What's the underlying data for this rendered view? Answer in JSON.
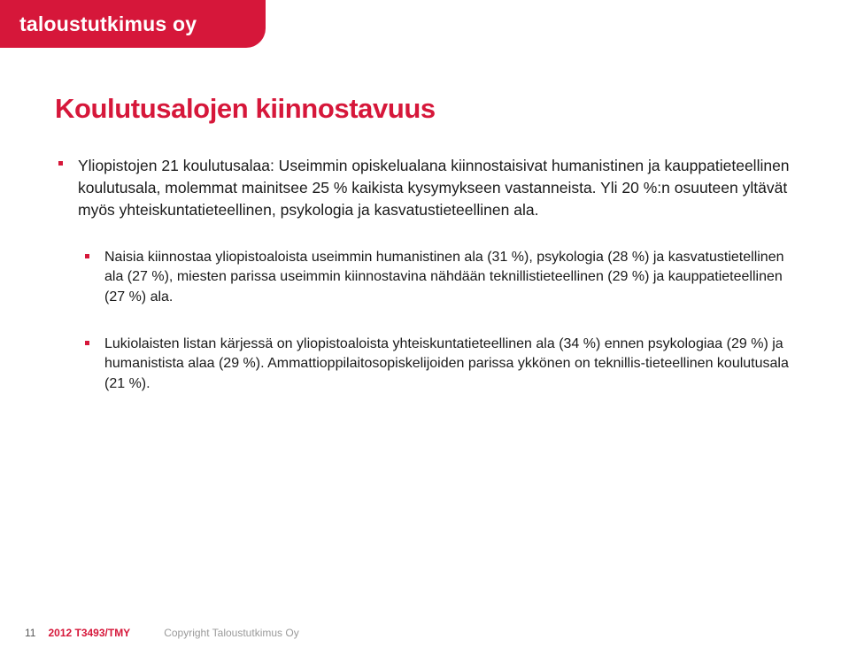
{
  "logo": {
    "text": "taloustutkimus oy"
  },
  "title": "Koulutusalojen kiinnostavuus",
  "bullets": {
    "b1": "Yliopistojen 21 koulutusalaa: Useimmin opiskelualana kiinnostaisivat humanistinen ja kauppatieteellinen koulutusala, molemmat mainitsee 25 % kaikista kysymykseen vastanneista. Yli 20 %:n osuuteen yltävät myös yhteiskuntatieteellinen, psykologia ja kasvatustieteellinen ala.",
    "b2": "Naisia kiinnostaa yliopistoaloista useimmin humanistinen ala (31 %), psykologia (28 %) ja kasvatustietellinen ala (27 %), miesten parissa useimmin kiinnostavina nähdään teknillistieteellinen (29 %) ja kauppatieteellinen (27 %) ala.",
    "b3": "Lukiolaisten listan kärjessä on yliopistoaloista yhteiskuntatieteellinen ala (34 %) ennen psykologiaa (29 %) ja humanistista alaa (29 %). Ammattioppilaitosopiskelijoiden parissa ykkönen on teknillis-tieteellinen koulutusala (21 %)."
  },
  "footer": {
    "page": "11",
    "ref": "2012 T3493/TMY",
    "copyright": "Copyright Taloustutkimus Oy"
  },
  "colors": {
    "brand_red": "#d6173a",
    "text": "#1a1a1a",
    "footer_gray": "#9a9a9a",
    "background": "#ffffff"
  },
  "typography": {
    "title_fontsize": 31,
    "body_fontsize": 17.5,
    "sub_body_fontsize": 16,
    "footer_fontsize": 12,
    "logo_fontsize": 23
  }
}
